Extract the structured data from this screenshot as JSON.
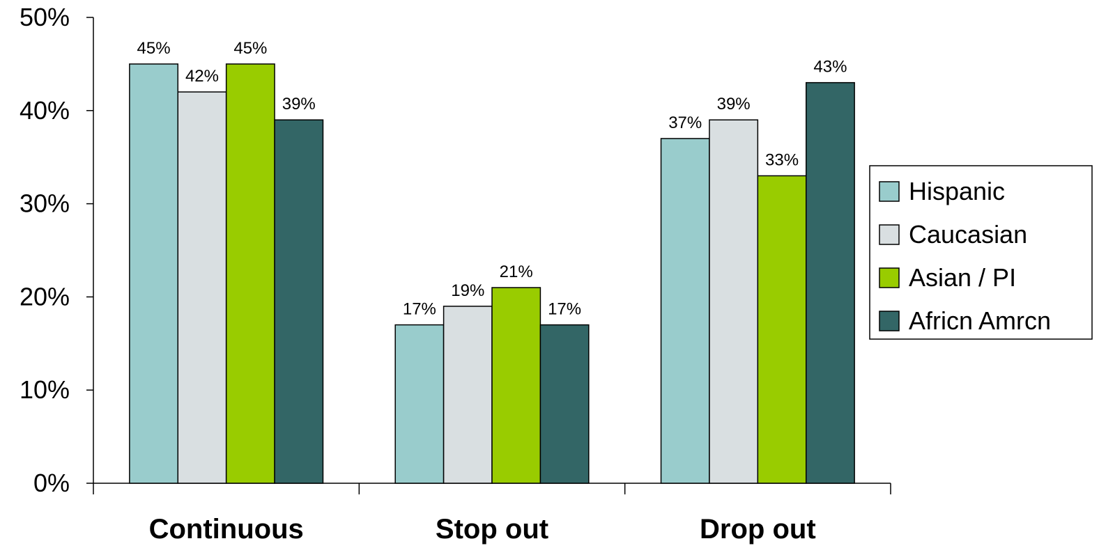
{
  "chart_data": {
    "type": "bar",
    "categories": [
      "Continuous",
      "Stop out",
      "Drop out"
    ],
    "series": [
      {
        "name": "Hispanic",
        "values": [
          45,
          17,
          37
        ],
        "color": "#99CCCC"
      },
      {
        "name": "Caucasian",
        "values": [
          42,
          19,
          39
        ],
        "color": "#D9DFE1"
      },
      {
        "name": "Asian / PI",
        "values": [
          45,
          21,
          33
        ],
        "color": "#99CC00"
      },
      {
        "name": "Africn Amrcn",
        "values": [
          39,
          17,
          43
        ],
        "color": "#336666"
      }
    ],
    "data_labels": [
      [
        "45%",
        "17%",
        "37%"
      ],
      [
        "42%",
        "19%",
        "39%"
      ],
      [
        "45%",
        "21%",
        "33%"
      ],
      [
        "39%",
        "17%",
        "43%"
      ]
    ],
    "y_ticks": [
      0,
      10,
      20,
      30,
      40,
      50
    ],
    "y_tick_labels": [
      "0%",
      "10%",
      "20%",
      "30%",
      "40%",
      "50%"
    ],
    "ylim": [
      0,
      50
    ],
    "title": "",
    "xlabel": "",
    "ylabel": "",
    "grid": false,
    "legend_position": "right"
  }
}
